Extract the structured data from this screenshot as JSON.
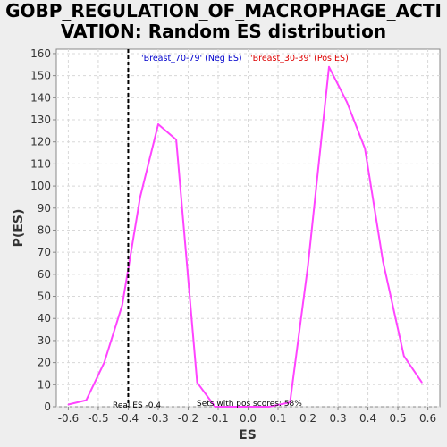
{
  "title": {
    "line1": "GOBP_REGULATION_OF_MACROPHAGE_ACTI",
    "line2": "VATION: Random ES distribution"
  },
  "chart_data": {
    "type": "line",
    "title": "GOBP_REGULATION_OF_MACROPHAGE_ACTIVATION: Random ES distribution",
    "xlabel": "ES",
    "ylabel": "P(ES)",
    "xlim": [
      -0.64,
      0.64
    ],
    "ylim": [
      0,
      162
    ],
    "xticks": [
      -0.6,
      -0.5,
      -0.4,
      -0.3,
      -0.2,
      -0.1,
      0.0,
      0.1,
      0.2,
      0.3,
      0.4,
      0.5,
      0.6
    ],
    "xtick_labels": [
      "-0.6",
      "-0.5",
      "-0.4",
      "-0.3",
      "-0.2",
      "-0.1",
      "0.0",
      "0.1",
      "0.2",
      "0.3",
      "0.4",
      "0.5",
      "0.6"
    ],
    "yticks": [
      0,
      10,
      20,
      30,
      40,
      50,
      60,
      70,
      80,
      90,
      100,
      110,
      120,
      130,
      140,
      150,
      160
    ],
    "ytick_labels": [
      "0",
      "10",
      "20",
      "30",
      "40",
      "50",
      "60",
      "70",
      "80",
      "90",
      "100",
      "110",
      "120",
      "130",
      "140",
      "150",
      "160"
    ],
    "grid": true,
    "series": [
      {
        "color": "#ff44ff",
        "x": [
          -0.6,
          -0.54,
          -0.48,
          -0.42,
          -0.36,
          -0.3,
          -0.24,
          -0.17,
          -0.11,
          -0.05,
          0.01,
          0.07,
          0.14,
          0.2,
          0.27,
          0.33,
          0.39,
          0.45,
          0.52,
          0.58
        ],
        "y": [
          1,
          3,
          20,
          46,
          95,
          128,
          121,
          11,
          0,
          0,
          0,
          0,
          2,
          64,
          154,
          138,
          117,
          66,
          23,
          11
        ]
      }
    ],
    "real_es": {
      "x": -0.4,
      "label": "Real ES -0.4",
      "color": "#000000"
    },
    "pos_scores_text": "Sets with pos scores: 58%",
    "legend_neg": {
      "text": "'Breast_70-79' (Neg ES)",
      "color": "#0000cc"
    },
    "legend_pos": {
      "text": "'Breast_30-39' (Pos ES)",
      "color": "#dd0000"
    },
    "colors": {
      "background": "#eeeeee",
      "plot_background": "#ffffff",
      "grid": "#d8d8d8"
    }
  }
}
